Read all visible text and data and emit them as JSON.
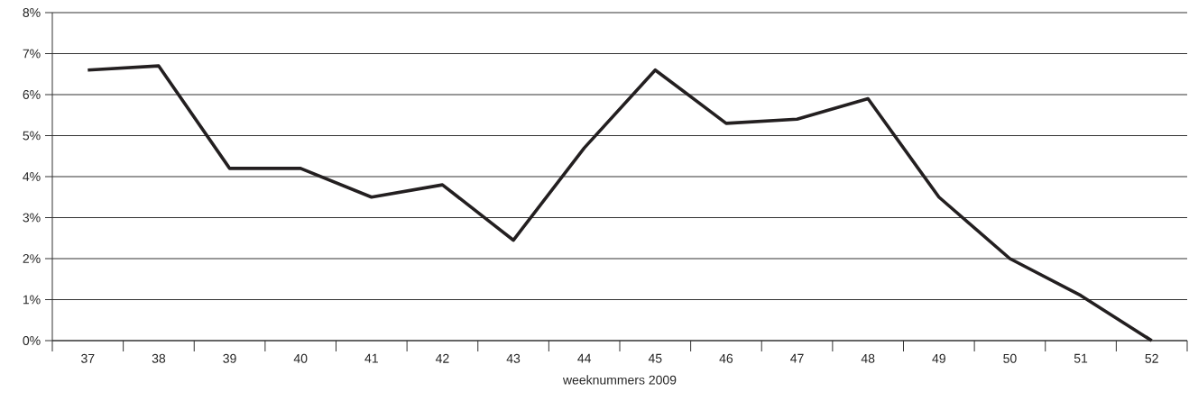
{
  "chart_data": {
    "type": "line",
    "xlabel": "weeknummers 2009",
    "categories": [
      "37",
      "38",
      "39",
      "40",
      "41",
      "42",
      "43",
      "44",
      "45",
      "46",
      "47",
      "48",
      "49",
      "50",
      "51",
      "52"
    ],
    "series": [
      {
        "color": "#231f20",
        "values": [
          6.6,
          6.7,
          4.2,
          4.2,
          3.5,
          3.8,
          2.45,
          4.7,
          6.6,
          5.3,
          5.4,
          5.9,
          3.5,
          2.0,
          1.1,
          0
        ]
      }
    ],
    "ylim": [
      0,
      8
    ],
    "yticks": [
      {
        "value": 0,
        "label": "0%"
      },
      {
        "value": 1,
        "label": "1%"
      },
      {
        "value": 2,
        "label": "2%"
      },
      {
        "value": 3,
        "label": "3%"
      },
      {
        "value": 4,
        "label": "4%"
      },
      {
        "value": 5,
        "label": "5%"
      },
      {
        "value": 6,
        "label": "6%"
      },
      {
        "value": 7,
        "label": "7%"
      },
      {
        "value": 8,
        "label": "8%"
      }
    ],
    "grid": "y",
    "line_style": "solid",
    "marker": "none"
  }
}
